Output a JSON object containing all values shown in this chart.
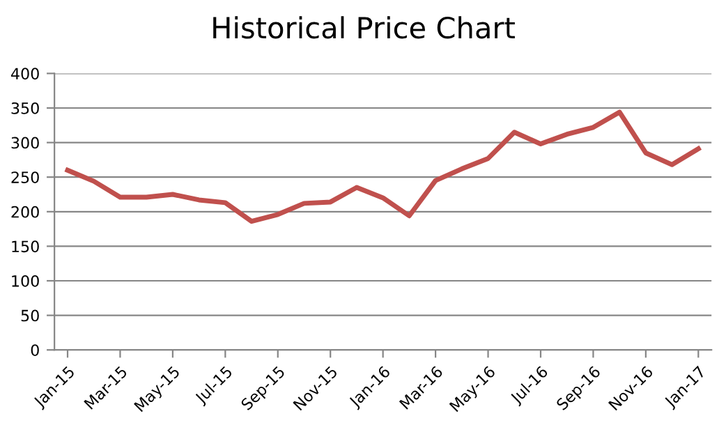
{
  "chart_data": {
    "type": "line",
    "title": "Historical Price Chart",
    "categories": [
      "Jan-15",
      null,
      "Mar-15",
      null,
      "May-15",
      null,
      "Jul-15",
      null,
      "Sep-15",
      null,
      "Nov-15",
      null,
      "Jan-16",
      null,
      "Mar-16",
      null,
      "May-16",
      null,
      "Jul-16",
      null,
      "Sep-16",
      null,
      "Nov-16",
      null,
      "Jan-17"
    ],
    "series": [
      {
        "color": "#c0504d",
        "values": [
          260,
          244,
          221,
          221,
          225,
          217,
          213,
          186,
          196,
          212,
          214,
          235,
          220,
          194,
          245,
          262,
          277,
          315,
          298,
          312,
          322,
          344,
          285,
          268,
          291
        ]
      }
    ],
    "ylim": [
      0,
      400
    ],
    "yticks": [
      0,
      50,
      100,
      150,
      200,
      250,
      300,
      350,
      400
    ],
    "grid": "y",
    "marker": "none",
    "line_style": "solid"
  }
}
